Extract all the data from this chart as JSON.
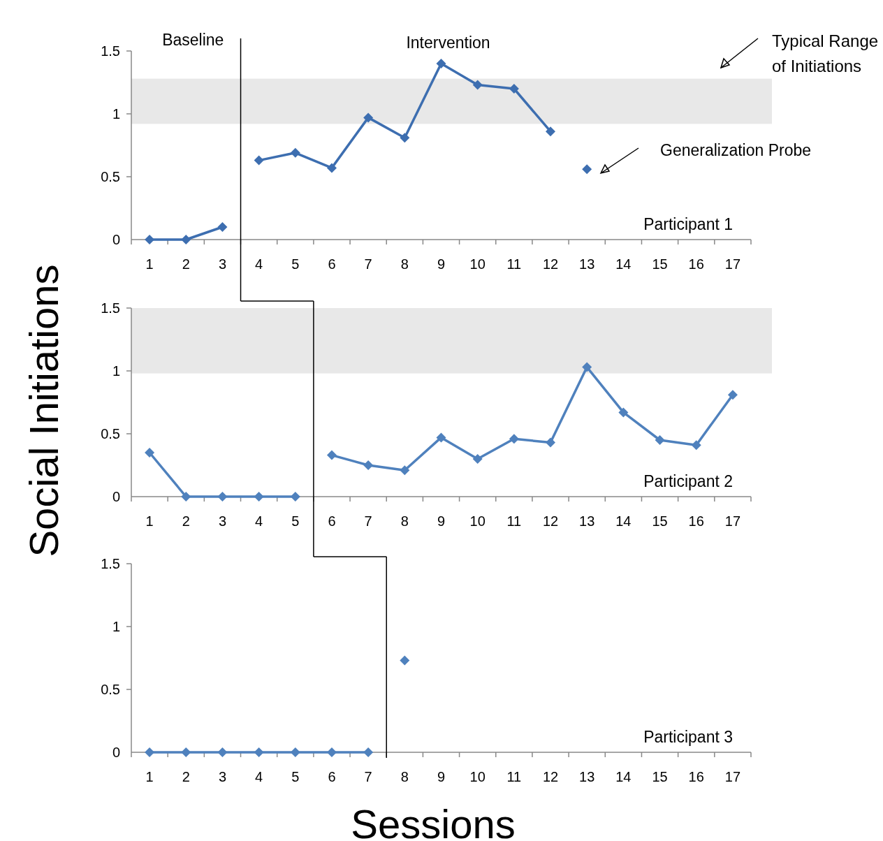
{
  "chart_data": [
    {
      "type": "line",
      "title": "Participant 1",
      "xlim": [
        0.5,
        17.5
      ],
      "ylim": [
        0,
        1.5
      ],
      "yticks": [
        0,
        0.5,
        1,
        1.5
      ],
      "xticks": [
        {
          "value": 0.5,
          "label": null
        },
        1,
        {
          "value": 1.5,
          "label": null
        },
        2,
        {
          "value": 2.5,
          "label": null
        },
        3,
        {
          "value": 3.5,
          "label": null
        },
        4,
        {
          "value": 4.5,
          "label": null
        },
        5,
        {
          "value": 5.5,
          "label": null
        },
        6,
        {
          "value": 6.5,
          "label": null
        },
        7,
        {
          "value": 7.5,
          "label": null
        },
        8,
        {
          "value": 8.5,
          "label": null
        },
        9,
        {
          "value": 9.5,
          "label": null
        },
        10,
        {
          "value": 10.5,
          "label": null
        },
        11,
        {
          "value": 11.5,
          "label": null
        },
        12,
        {
          "value": 12.5,
          "label": null
        },
        13,
        {
          "value": 13.5,
          "label": null
        },
        14,
        {
          "value": 14.5,
          "label": null
        },
        15,
        {
          "value": 15.5,
          "label": null
        },
        16,
        {
          "value": 16.5,
          "label": null
        },
        17,
        {
          "value": 17.5,
          "label": null
        }
      ],
      "series": [
        {
          "color": "#3d6eb0",
          "x": [
            1,
            2,
            3
          ],
          "values": [
            0,
            0,
            0.1
          ]
        },
        {
          "color": "#3d6eb0",
          "x": [
            4,
            5,
            6,
            7,
            8,
            9,
            10,
            11,
            12
          ],
          "values": [
            0.63,
            0.69,
            0.57,
            0.97,
            0.81,
            1.4,
            1.23,
            1.2,
            0.86
          ]
        },
        {
          "type": "scatter",
          "color": "#3d6eb0",
          "x": [
            13
          ],
          "values": [
            0.56
          ]
        }
      ],
      "bands": [
        {
          "axis": "y",
          "from": 0.92,
          "to": 1.28,
          "label": "Typical Range of Initiations",
          "color": "#e8e8e8"
        }
      ],
      "ref_lines": [
        {
          "axis": "x",
          "value": 3.5,
          "color": "#000000"
        }
      ],
      "annotations": [
        "Baseline",
        "Intervention",
        "Generalization Probe"
      ],
      "marker": "diamond",
      "grid": false
    },
    {
      "type": "line",
      "title": "Participant 2",
      "ylabel": "Social Initiations",
      "xlim": [
        0.5,
        17.5
      ],
      "ylim": [
        0,
        1.5
      ],
      "yticks": [
        0,
        0.5,
        1,
        1.5
      ],
      "xticks": [
        {
          "value": 0.5,
          "label": null
        },
        1,
        {
          "value": 1.5,
          "label": null
        },
        2,
        {
          "value": 2.5,
          "label": null
        },
        3,
        {
          "value": 3.5,
          "label": null
        },
        4,
        {
          "value": 4.5,
          "label": null
        },
        5,
        {
          "value": 5.5,
          "label": null
        },
        6,
        {
          "value": 6.5,
          "label": null
        },
        7,
        {
          "value": 7.5,
          "label": null
        },
        8,
        {
          "value": 8.5,
          "label": null
        },
        9,
        {
          "value": 9.5,
          "label": null
        },
        10,
        {
          "value": 10.5,
          "label": null
        },
        11,
        {
          "value": 11.5,
          "label": null
        },
        12,
        {
          "value": 12.5,
          "label": null
        },
        13,
        {
          "value": 13.5,
          "label": null
        },
        14,
        {
          "value": 14.5,
          "label": null
        },
        15,
        {
          "value": 15.5,
          "label": null
        },
        16,
        {
          "value": 16.5,
          "label": null
        },
        17,
        {
          "value": 17.5,
          "label": null
        }
      ],
      "series": [
        {
          "color": "#4f81bd",
          "x": [
            1,
            2,
            3,
            4,
            5
          ],
          "values": [
            0.35,
            0,
            0,
            0,
            0
          ]
        },
        {
          "color": "#4f81bd",
          "x": [
            6,
            7,
            8,
            9,
            10,
            11,
            12,
            13,
            14,
            15,
            16,
            17
          ],
          "values": [
            0.33,
            0.25,
            0.21,
            0.47,
            0.3,
            0.46,
            0.43,
            1.03,
            0.67,
            0.45,
            0.41,
            0.81
          ]
        }
      ],
      "bands": [
        {
          "axis": "y",
          "from": 0.98,
          "to": 1.5,
          "color": "#e8e8e8"
        }
      ],
      "ref_lines": [
        {
          "axis": "x",
          "value": 5.5,
          "color": "#000000"
        }
      ],
      "marker": "diamond",
      "grid": false
    },
    {
      "type": "line",
      "title": "Participant 3",
      "xlabel": "Sessions",
      "xlim": [
        0.5,
        17.5
      ],
      "ylim": [
        0,
        1.5
      ],
      "yticks": [
        0,
        0.5,
        1,
        1.5
      ],
      "xticks": [
        {
          "value": 0.5,
          "label": null
        },
        1,
        {
          "value": 1.5,
          "label": null
        },
        2,
        {
          "value": 2.5,
          "label": null
        },
        3,
        {
          "value": 3.5,
          "label": null
        },
        4,
        {
          "value": 4.5,
          "label": null
        },
        5,
        {
          "value": 5.5,
          "label": null
        },
        6,
        {
          "value": 6.5,
          "label": null
        },
        7,
        {
          "value": 7.5,
          "label": null
        },
        8,
        {
          "value": 8.5,
          "label": null
        },
        9,
        {
          "value": 9.5,
          "label": null
        },
        10,
        {
          "value": 10.5,
          "label": null
        },
        11,
        {
          "value": 11.5,
          "label": null
        },
        12,
        {
          "value": 12.5,
          "label": null
        },
        13,
        {
          "value": 13.5,
          "label": null
        },
        14,
        {
          "value": 14.5,
          "label": null
        },
        15,
        {
          "value": 15.5,
          "label": null
        },
        16,
        {
          "value": 16.5,
          "label": null
        },
        17,
        {
          "value": 17.5,
          "label": null
        }
      ],
      "series": [
        {
          "color": "#4f81bd",
          "x": [
            1,
            2,
            3,
            4,
            5,
            6,
            7
          ],
          "values": [
            0,
            0,
            0,
            0,
            0,
            0,
            0
          ]
        },
        {
          "type": "scatter",
          "color": "#4f81bd",
          "x": [
            8
          ],
          "values": [
            0.73
          ]
        }
      ],
      "ref_lines": [
        {
          "axis": "x",
          "value": 7.5,
          "color": "#000000"
        }
      ],
      "marker": "diamond",
      "grid": false
    }
  ]
}
